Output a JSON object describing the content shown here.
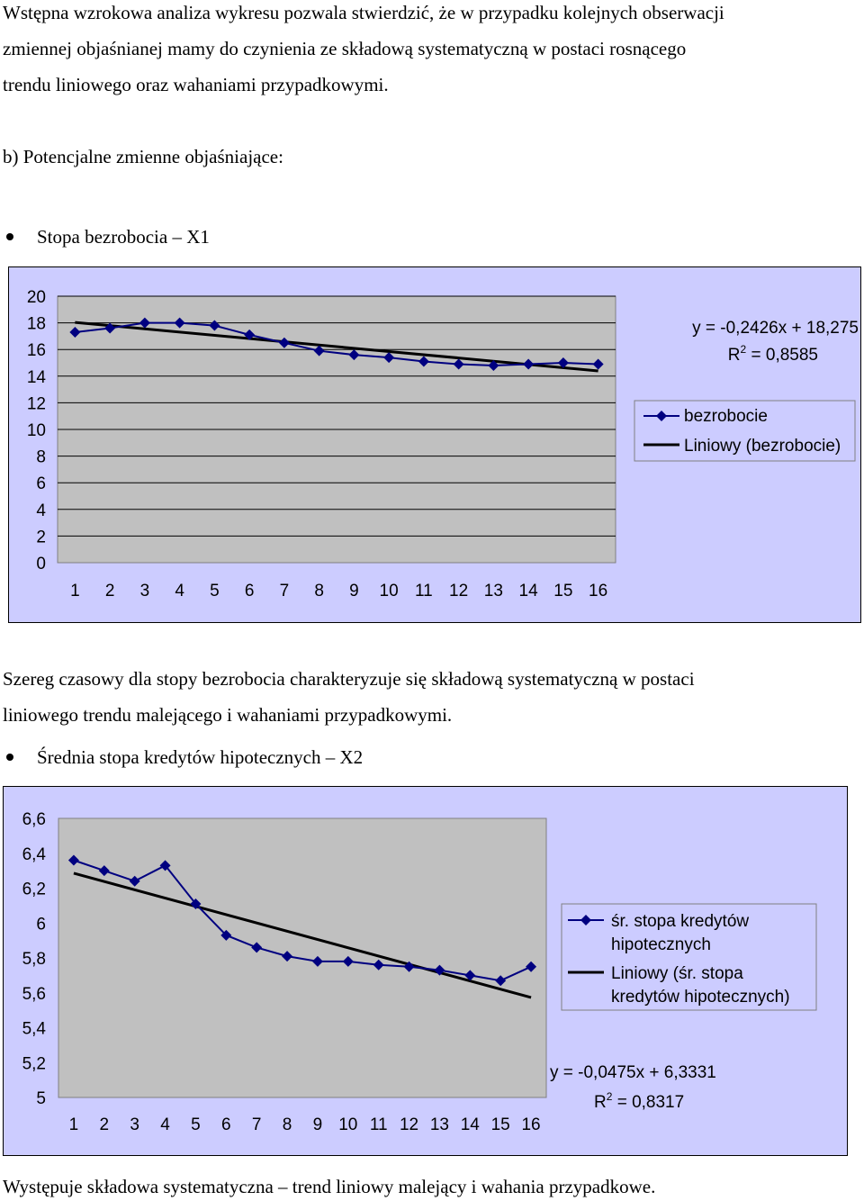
{
  "intro_text": [
    "Wstępna wzrokowa analiza wykresu pozwala stwierdzić, że w przypadku kolejnych obserwacji",
    "zmiennej objaśnianej mamy do czynienia ze składową systematyczną w postaci rosnącego",
    "trendu liniowego oraz wahaniami przypadkowymi."
  ],
  "section_heading": "b) Potencjalne zmienne objaśniające:",
  "bullet1": "Stopa bezrobocia – X1",
  "middle_text": [
    "Szereg czasowy dla stopy bezrobocia charakteryzuje się składową systematyczną w postaci",
    "liniowego trendu malejącego i  wahaniami przypadkowymi."
  ],
  "bullet2": "Średnia stopa kredytów hipotecznych – X2",
  "closing_text": "Występuje składowa systematyczna – trend liniowy malejący i wahania przypadkowe.",
  "colors": {
    "chart_background": "#ccccff",
    "plot_area": "#c0c0c0",
    "series": "#000080",
    "trendline": "#000000",
    "gridline": "#000000"
  },
  "chart_data": [
    {
      "type": "line",
      "categories": [
        "1",
        "2",
        "3",
        "4",
        "5",
        "6",
        "7",
        "8",
        "9",
        "10",
        "11",
        "12",
        "13",
        "14",
        "15",
        "16"
      ],
      "series": [
        {
          "name": "bezrobocie",
          "marker": "diamond",
          "values": [
            17.3,
            17.6,
            18.0,
            18.0,
            17.8,
            17.1,
            16.5,
            15.9,
            15.6,
            15.4,
            15.1,
            14.9,
            14.8,
            14.9,
            15.0,
            14.9
          ]
        },
        {
          "name": "Liniowy (bezrobocie)",
          "kind": "linear-trendline",
          "slope": -0.2426,
          "intercept": 18.275
        }
      ],
      "yticks": [
        "0",
        "2",
        "4",
        "6",
        "8",
        "10",
        "12",
        "14",
        "16",
        "18",
        "20"
      ],
      "ylim": [
        0,
        20
      ],
      "grid": "horizontal",
      "equation": "y = -0,2426x + 18,275",
      "r2_prefix": "R",
      "r2_sup": "2",
      "r2_value": " = 0,8585",
      "legend_position": "right"
    },
    {
      "type": "line",
      "categories": [
        "1",
        "2",
        "3",
        "4",
        "5",
        "6",
        "7",
        "8",
        "9",
        "10",
        "11",
        "12",
        "13",
        "14",
        "15",
        "16"
      ],
      "series": [
        {
          "name": "śr. stopa kredytów hipotecznych",
          "label_lines": [
            "śr. stopa kredytów",
            "hipotecznych"
          ],
          "marker": "diamond",
          "values": [
            6.36,
            6.3,
            6.24,
            6.33,
            6.11,
            5.93,
            5.86,
            5.81,
            5.78,
            5.78,
            5.76,
            5.75,
            5.73,
            5.7,
            5.67,
            5.75
          ]
        },
        {
          "name": "Liniowy (śr. stopa kredytów hipotecznych)",
          "label_lines": [
            "Liniowy (śr. stopa",
            "kredytów hipotecznych)"
          ],
          "kind": "linear-trendline",
          "slope": -0.0475,
          "intercept": 6.3331
        }
      ],
      "yticks": [
        "5",
        "5,2",
        "5,4",
        "5,6",
        "5,8",
        "6",
        "6,2",
        "6,4",
        "6,6"
      ],
      "ylim": [
        5,
        6.6
      ],
      "grid": "none",
      "equation": "y = -0,0475x + 6,3331",
      "r2_prefix": "R",
      "r2_sup": "2",
      "r2_value": " = 0,8317",
      "legend_position": "right"
    }
  ]
}
